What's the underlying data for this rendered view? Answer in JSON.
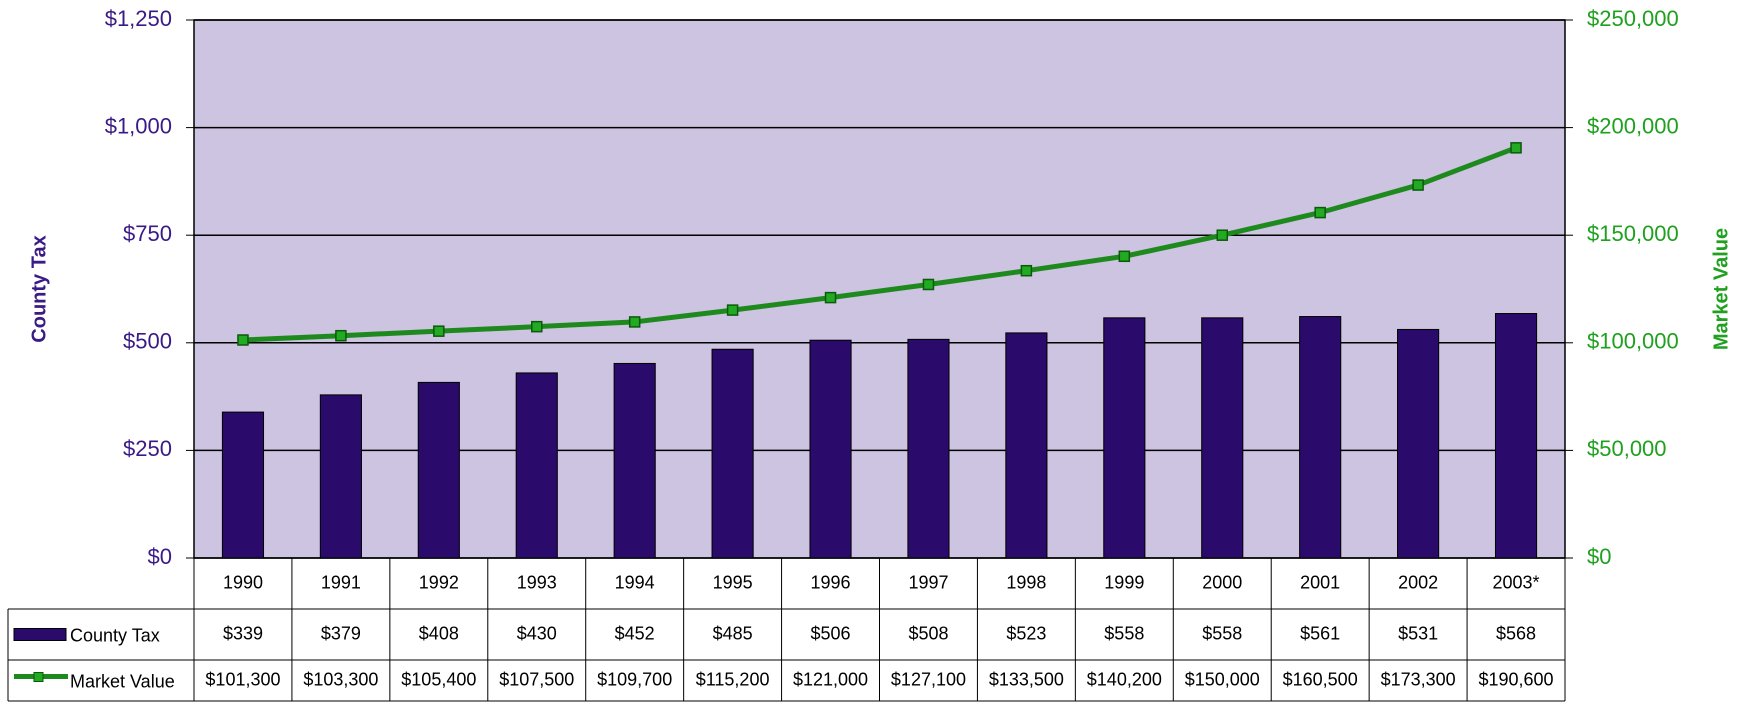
{
  "chart_data": {
    "type": "bar_line",
    "categories": [
      "1990",
      "1991",
      "1992",
      "1993",
      "1994",
      "1995",
      "1996",
      "1997",
      "1998",
      "1999",
      "2000",
      "2001",
      "2002",
      "2003*"
    ],
    "series": [
      {
        "name": "County Tax",
        "color": "#2a0a6a",
        "type": "bar",
        "axis": "y",
        "values": [
          339,
          379,
          408,
          430,
          452,
          485,
          506,
          508,
          523,
          558,
          558,
          561,
          531,
          568
        ],
        "value_labels": [
          "$339",
          "$379",
          "$408",
          "$430",
          "$452",
          "$485",
          "$506",
          "$508",
          "$523",
          "$558",
          "$558",
          "$561",
          "$531",
          "$568"
        ]
      },
      {
        "name": "Market Value",
        "color": "#1e8a1e",
        "type": "line",
        "axis": "y2",
        "values": [
          101300,
          103300,
          105400,
          107500,
          109700,
          115200,
          121000,
          127100,
          133500,
          140200,
          150000,
          160500,
          173300,
          190600
        ],
        "value_labels": [
          "$101,300",
          "$103,300",
          "$105,400",
          "$107,500",
          "$109,700",
          "$115,200",
          "$121,000",
          "$127,100",
          "$133,500",
          "$140,200",
          "$150,000",
          "$160,500",
          "$173,300",
          "$190,600"
        ]
      }
    ],
    "y_label": "County Tax",
    "y2_label": "Market Value",
    "ylim": [
      0,
      1250
    ],
    "yticks": [
      {
        "value": 0,
        "label": "$0"
      },
      {
        "value": 250,
        "label": "$250"
      },
      {
        "value": 500,
        "label": "$500"
      },
      {
        "value": 750,
        "label": "$750"
      },
      {
        "value": 1000,
        "label": "$1,000"
      },
      {
        "value": 1250,
        "label": "$1,250"
      }
    ],
    "y2lim": [
      0,
      250000
    ],
    "y2ticks": [
      {
        "value": 0,
        "label": "$0"
      },
      {
        "value": 50000,
        "label": "$50,000"
      },
      {
        "value": 100000,
        "label": "$100,000"
      },
      {
        "value": 150000,
        "label": "$150,000"
      },
      {
        "value": 200000,
        "label": "$200,000"
      },
      {
        "value": 250000,
        "label": "$250,000"
      }
    ],
    "grid": true,
    "plot_background": "#ccc4e0"
  }
}
